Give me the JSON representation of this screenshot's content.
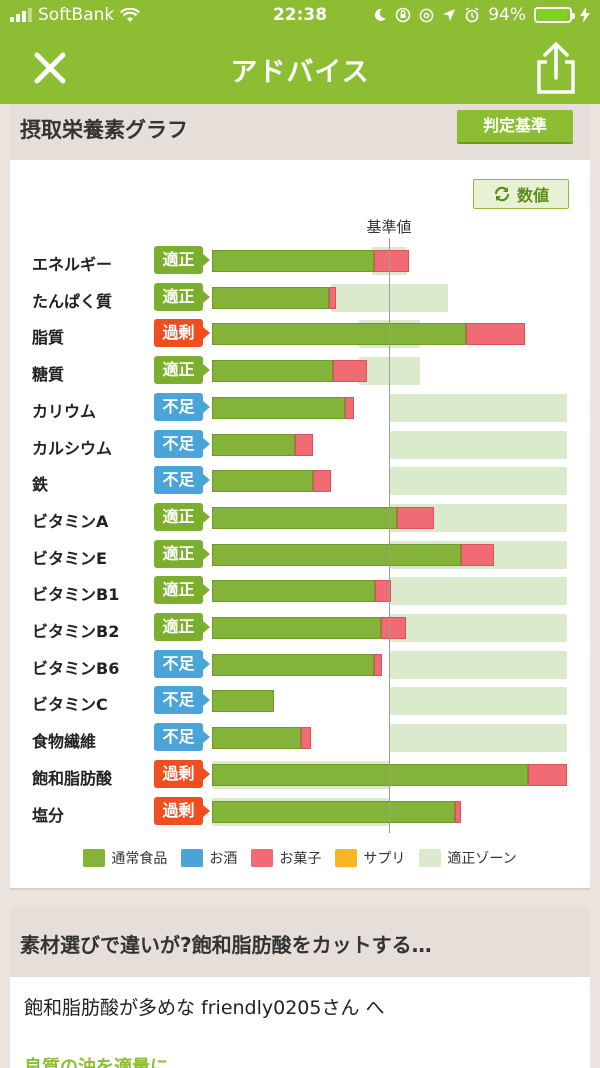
{
  "status_bar": {
    "carrier": "SoftBank",
    "time": "22:38",
    "battery": "94%"
  },
  "nav": {
    "title": "アドバイス"
  },
  "section": {
    "title": "摂取栄養素グラフ",
    "criteria_button": "判定基準",
    "numbers_button": "数値"
  },
  "chart": {
    "reference_label": "基準値"
  },
  "chart_data": {
    "type": "bar",
    "stacked": true,
    "title": "摂取栄養素グラフ",
    "reference_label": "基準値",
    "categories": [
      "エネルギー",
      "たんぱく質",
      "脂質",
      "糖質",
      "カリウム",
      "カルシウム",
      "鉄",
      "ビタミンA",
      "ビタミンE",
      "ビタミンB1",
      "ビタミンB2",
      "ビタミンB6",
      "ビタミンC",
      "食物繊維",
      "飽和脂肪酸",
      "塩分"
    ],
    "judgements": [
      "適正",
      "適正",
      "過剰",
      "適正",
      "不足",
      "不足",
      "不足",
      "適正",
      "適正",
      "適正",
      "適正",
      "不足",
      "不足",
      "不足",
      "過剰",
      "過剰"
    ],
    "series": [
      {
        "name": "通常食品",
        "values": [
          91,
          66,
          143,
          68,
          75,
          47,
          57,
          104,
          140,
          92,
          95,
          91,
          35,
          50,
          178,
          137
        ]
      },
      {
        "name": "お酒",
        "values": [
          0,
          0,
          0,
          0,
          0,
          0,
          0,
          0,
          0,
          0,
          0,
          0,
          0,
          0,
          0,
          0
        ]
      },
      {
        "name": "お菓子",
        "values": [
          20,
          4,
          33,
          19,
          5,
          10,
          10,
          21,
          19,
          9,
          14,
          5,
          0,
          6,
          22,
          3
        ]
      },
      {
        "name": "サプリ",
        "values": [
          0,
          0,
          0,
          0,
          0,
          0,
          0,
          0,
          0,
          0,
          0,
          0,
          0,
          0,
          0,
          0
        ]
      }
    ],
    "ok_zones": [
      [
        90,
        110
      ],
      [
        67,
        133
      ],
      [
        83,
        117
      ],
      [
        83,
        117
      ],
      [
        100,
        200
      ],
      [
        100,
        200
      ],
      [
        100,
        200
      ],
      [
        100,
        200
      ],
      [
        100,
        200
      ],
      [
        100,
        200
      ],
      [
        100,
        200
      ],
      [
        100,
        200
      ],
      [
        100,
        200
      ],
      [
        100,
        200
      ],
      [
        0,
        100
      ],
      [
        0,
        100
      ]
    ],
    "reference_value": 100,
    "xlim": [
      0,
      200
    ],
    "legend_position": "bottom"
  },
  "legend": [
    {
      "label": "通常食品",
      "color": "#84b33a"
    },
    {
      "label": "お酒",
      "color": "#4aa4d8"
    },
    {
      "label": "お菓子",
      "color": "#f06b73"
    },
    {
      "label": "サプリ",
      "color": "#f5b820"
    },
    {
      "label": "適正ゾーン",
      "color": "#dbe9cc"
    }
  ],
  "advice": {
    "title": "素材選びで違いが?飽和脂肪酸をカットする…",
    "body": "飽和脂肪酸が多めな friendly0205さん へ",
    "subtitle": "良質の油を適量に"
  },
  "colors": {
    "brand": "#8cbd32",
    "ok": "#7daf2e",
    "low": "#4aa4d8",
    "high": "#ef4e1f"
  }
}
